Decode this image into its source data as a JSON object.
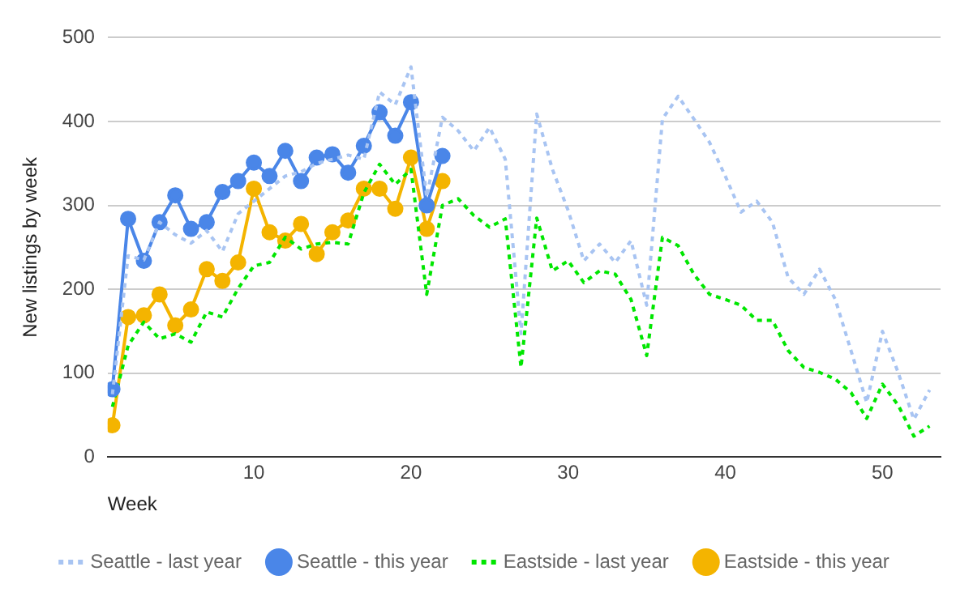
{
  "chart_data": {
    "type": "line",
    "xlabel": "Week",
    "ylabel": "New listings by week",
    "x": [
      1,
      2,
      3,
      4,
      5,
      6,
      7,
      8,
      9,
      10,
      11,
      12,
      13,
      14,
      15,
      16,
      17,
      18,
      19,
      20,
      21,
      22,
      23,
      24,
      25,
      26,
      27,
      28,
      29,
      30,
      31,
      32,
      33,
      34,
      35,
      36,
      37,
      38,
      39,
      40,
      41,
      42,
      43,
      44,
      45,
      46,
      47,
      48,
      49,
      50,
      51,
      52,
      53
    ],
    "xlim": [
      0.7,
      53.7
    ],
    "xticks": [
      10,
      20,
      30,
      40,
      50
    ],
    "ylim": [
      0,
      500
    ],
    "yticks": [
      0,
      100,
      200,
      300,
      400,
      500
    ],
    "grid": "y",
    "legend": "bottom",
    "series": [
      {
        "name": "Seattle - last year",
        "color": "#a8c4f2",
        "line_style": "dotted",
        "marker": "none",
        "values": [
          75,
          240,
          235,
          280,
          265,
          255,
          270,
          245,
          290,
          305,
          320,
          335,
          340,
          350,
          355,
          360,
          355,
          435,
          420,
          465,
          310,
          405,
          389,
          365,
          393,
          355,
          147,
          409,
          343,
          294,
          234,
          254,
          232,
          258,
          181,
          403,
          430,
          403,
          375,
          335,
          292,
          305,
          280,
          214,
          194,
          224,
          188,
          127,
          65,
          150,
          101,
          45,
          80
        ]
      },
      {
        "name": "Seattle - this year",
        "color": "#4a86e8",
        "line_style": "solid",
        "marker": "circle",
        "values": [
          81,
          284,
          234,
          280,
          312,
          272,
          280,
          316,
          329,
          351,
          335,
          365,
          329,
          357,
          361,
          339,
          371,
          411,
          383,
          423,
          300,
          359,
          null,
          null,
          null,
          null,
          null,
          null,
          null,
          null,
          null,
          null,
          null,
          null,
          null,
          null,
          null,
          null,
          null,
          null,
          null,
          null,
          null,
          null,
          null,
          null,
          null,
          null,
          null,
          null,
          null,
          null,
          null
        ]
      },
      {
        "name": "Eastside - last year",
        "color": "#00e600",
        "line_style": "dotted",
        "marker": "none",
        "values": [
          60,
          133,
          161,
          141,
          147,
          137,
          173,
          167,
          201,
          228,
          232,
          262,
          248,
          254,
          256,
          254,
          315,
          349,
          325,
          343,
          194,
          300,
          308,
          288,
          274,
          284,
          107,
          285,
          222,
          234,
          208,
          222,
          218,
          188,
          121,
          262,
          252,
          218,
          194,
          188,
          181,
          163,
          163,
          127,
          107,
          101,
          93,
          77,
          46,
          87,
          62,
          25,
          37
        ]
      },
      {
        "name": "Eastside - this year",
        "color": "#f4b400",
        "line_style": "solid",
        "marker": "circle",
        "values": [
          38,
          167,
          169,
          194,
          157,
          176,
          224,
          210,
          232,
          320,
          268,
          258,
          278,
          242,
          268,
          282,
          320,
          320,
          296,
          357,
          272,
          329,
          null,
          null,
          null,
          null,
          null,
          null,
          null,
          null,
          null,
          null,
          null,
          null,
          null,
          null,
          null,
          null,
          null,
          null,
          null,
          null,
          null,
          null,
          null,
          null,
          null,
          null,
          null,
          null,
          null,
          null,
          null
        ]
      }
    ]
  }
}
